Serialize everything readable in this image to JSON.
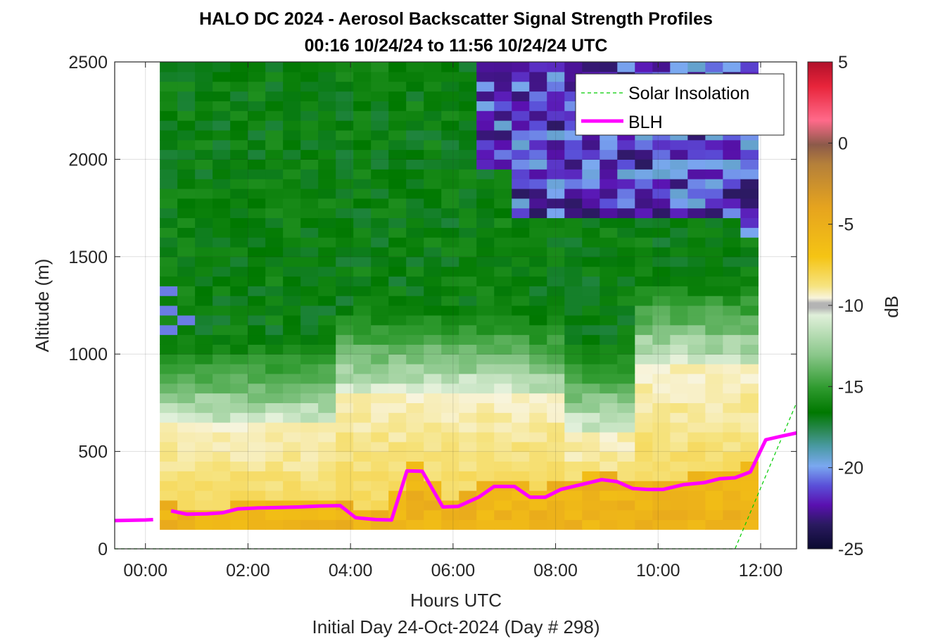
{
  "chart_data": {
    "type": "heatmap",
    "title": "HALO DC 2024 - Aerosol Backscatter Signal Strength Profiles",
    "subtitle": "00:16 10/24/24 to 11:56 10/24/24  UTC",
    "xlabel": "Hours UTC",
    "xlabel2": "Initial Day 24-Oct-2024 (Day # 298)",
    "ylabel": "Altitude (m)",
    "colorbar_label": "dB",
    "xlim": [
      -0.6,
      12.7
    ],
    "ylim": [
      0,
      2500
    ],
    "xticks": [
      "00:00",
      "02:00",
      "04:00",
      "06:00",
      "08:00",
      "10:00",
      "12:00"
    ],
    "xtick_values": [
      0,
      2,
      4,
      6,
      8,
      10,
      12
    ],
    "yticks": [
      "0",
      "500",
      "1000",
      "1500",
      "2000",
      "2500"
    ],
    "ytick_values": [
      0,
      500,
      1000,
      1500,
      2000,
      2500
    ],
    "clim": [
      -25,
      5
    ],
    "cticks": [
      "5",
      "0",
      "-5",
      "-10",
      "-15",
      "-20",
      "-25"
    ],
    "ctick_values": [
      5,
      0,
      -5,
      -10,
      -15,
      -20,
      -25
    ],
    "grid": true,
    "legend_position": "top-right",
    "heatmap_extent": {
      "x": [
        0.28,
        11.95
      ],
      "y": [
        100,
        2500
      ]
    },
    "legend": [
      {
        "label": "Solar Insolation",
        "color": "#00cc00",
        "style": "dashed"
      },
      {
        "label": "BLH",
        "color": "#ff00ff",
        "style": "solid"
      }
    ],
    "series": [
      {
        "name": "BLH",
        "color": "#ff00ff",
        "segments": [
          [
            [
              -0.6,
              145
            ],
            [
              0,
              148
            ],
            [
              0.15,
              150
            ]
          ],
          [
            [
              0.5,
              195
            ],
            [
              0.8,
              178
            ],
            [
              1.2,
              180
            ],
            [
              1.5,
              185
            ],
            [
              1.8,
              205
            ],
            [
              2.2,
              210
            ],
            [
              2.6,
              212
            ],
            [
              3.0,
              215
            ],
            [
              3.4,
              220
            ],
            [
              3.8,
              222
            ],
            [
              4.1,
              160
            ],
            [
              4.5,
              150
            ],
            [
              4.8,
              148
            ],
            [
              5.1,
              400
            ],
            [
              5.4,
              398
            ],
            [
              5.8,
              215
            ],
            [
              6.1,
              218
            ],
            [
              6.5,
              265
            ],
            [
              6.8,
              320
            ],
            [
              7.2,
              320
            ],
            [
              7.5,
              265
            ],
            [
              7.8,
              265
            ],
            [
              8.1,
              305
            ],
            [
              8.5,
              330
            ],
            [
              8.9,
              355
            ],
            [
              9.2,
              345
            ],
            [
              9.5,
              310
            ],
            [
              9.8,
              305
            ],
            [
              10.1,
              305
            ],
            [
              10.5,
              330
            ],
            [
              10.9,
              340
            ],
            [
              11.2,
              360
            ],
            [
              11.5,
              365
            ],
            [
              11.8,
              395
            ],
            [
              12.1,
              560
            ],
            [
              12.4,
              578
            ],
            [
              12.7,
              595
            ]
          ]
        ]
      },
      {
        "name": "Solar Insolation",
        "color": "#00cc00",
        "points": [
          [
            -0.6,
            0
          ],
          [
            11.5,
            0
          ],
          [
            12.7,
            750
          ]
        ]
      }
    ]
  }
}
